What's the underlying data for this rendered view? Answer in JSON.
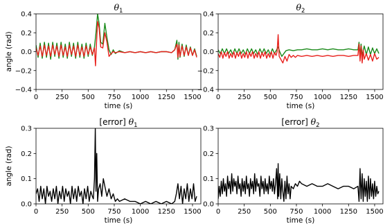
{
  "chart_data": [
    {
      "type": "line",
      "title": "θ₁",
      "title_prefix": "",
      "title_symbol": "θ",
      "title_subscript": "1",
      "xlabel": "time (s)",
      "ylabel": "angle (rad)",
      "xlim": [
        0,
        1580
      ],
      "ylim": [
        -0.4,
        0.4
      ],
      "xticks": [
        0,
        250,
        500,
        750,
        1000,
        1250,
        1500
      ],
      "yticks": [
        -0.4,
        -0.2,
        0.0,
        0.2,
        0.4
      ],
      "ytick_labels": [
        "−0.4",
        "−0.2",
        "0.0",
        "0.2",
        "0.4"
      ],
      "grid": false,
      "series": [
        {
          "color": "#1a8a1a",
          "x": [
            0,
            20,
            40,
            60,
            80,
            100,
            120,
            140,
            160,
            180,
            200,
            220,
            240,
            260,
            280,
            300,
            320,
            340,
            360,
            380,
            400,
            420,
            440,
            460,
            480,
            500,
            520,
            540,
            560,
            575,
            590,
            605,
            620,
            640,
            660,
            680,
            700,
            720,
            740,
            760,
            800,
            850,
            900,
            950,
            1000,
            1050,
            1100,
            1150,
            1200,
            1250,
            1300,
            1330,
            1350,
            1360,
            1370,
            1380,
            1400,
            1420,
            1440,
            1460,
            1480,
            1500,
            1520,
            1540
          ],
          "y": [
            0.07,
            -0.06,
            0.09,
            -0.07,
            0.1,
            -0.06,
            0.09,
            -0.08,
            0.1,
            -0.05,
            0.09,
            -0.07,
            0.1,
            -0.06,
            0.08,
            -0.07,
            0.1,
            -0.05,
            0.09,
            -0.07,
            0.1,
            -0.06,
            0.08,
            -0.07,
            0.09,
            -0.05,
            0.08,
            -0.04,
            0.05,
            0.2,
            0.4,
            0.3,
            0.1,
            0.08,
            0.3,
            0.15,
            0.02,
            -0.03,
            0.02,
            -0.02,
            0.01,
            -0.01,
            0.0,
            -0.01,
            0.0,
            -0.01,
            0.0,
            -0.01,
            0.0,
            0.0,
            -0.01,
            0.02,
            0.12,
            -0.08,
            0.1,
            -0.06,
            0.08,
            -0.05,
            0.07,
            -0.04,
            0.05,
            -0.04,
            0.03,
            -0.05
          ]
        },
        {
          "color": "#e8201c",
          "x": [
            0,
            20,
            40,
            60,
            80,
            100,
            120,
            140,
            160,
            180,
            200,
            220,
            240,
            260,
            280,
            300,
            320,
            340,
            360,
            380,
            400,
            420,
            440,
            460,
            480,
            500,
            520,
            540,
            560,
            570,
            580,
            590,
            605,
            620,
            640,
            660,
            680,
            700,
            720,
            740,
            760,
            800,
            850,
            900,
            950,
            1000,
            1050,
            1100,
            1150,
            1200,
            1250,
            1300,
            1330,
            1350,
            1360,
            1370,
            1380,
            1400,
            1420,
            1440,
            1460,
            1480,
            1500,
            1520,
            1540
          ],
          "y": [
            0.04,
            -0.04,
            0.06,
            -0.05,
            0.07,
            -0.04,
            0.06,
            -0.05,
            0.07,
            -0.03,
            0.06,
            -0.05,
            0.07,
            -0.04,
            0.05,
            -0.05,
            0.07,
            -0.03,
            0.06,
            -0.05,
            0.07,
            -0.04,
            0.05,
            -0.05,
            0.06,
            -0.03,
            0.05,
            -0.03,
            0.04,
            -0.15,
            0.1,
            0.32,
            0.25,
            0.05,
            0.04,
            0.2,
            0.1,
            -0.05,
            -0.02,
            0.0,
            -0.01,
            0.0,
            -0.01,
            0.0,
            -0.01,
            0.0,
            -0.01,
            0.0,
            -0.01,
            0.0,
            0.0,
            -0.01,
            0.02,
            0.08,
            -0.06,
            0.07,
            -0.05,
            0.06,
            -0.04,
            0.05,
            -0.04,
            0.04,
            -0.04,
            0.02,
            -0.06
          ]
        }
      ]
    },
    {
      "type": "line",
      "title": "θ₂",
      "title_prefix": "",
      "title_symbol": "θ",
      "title_subscript": "2",
      "xlabel": "time (s)",
      "ylabel": "",
      "xlim": [
        0,
        1580
      ],
      "ylim": [
        -0.4,
        0.4
      ],
      "xticks": [
        0,
        250,
        500,
        750,
        1000,
        1250,
        1500
      ],
      "yticks": [
        -0.4,
        -0.2,
        0.0,
        0.2,
        0.4
      ],
      "ytick_labels": [
        "−0.4",
        "−0.2",
        "0.0",
        "0.2",
        "0.4"
      ],
      "grid": false,
      "series": [
        {
          "color": "#1a8a1a",
          "x": [
            0,
            20,
            40,
            60,
            80,
            100,
            120,
            140,
            160,
            180,
            200,
            220,
            240,
            260,
            280,
            300,
            320,
            340,
            360,
            380,
            400,
            420,
            440,
            460,
            480,
            500,
            520,
            540,
            560,
            575,
            590,
            610,
            630,
            650,
            680,
            720,
            760,
            800,
            850,
            900,
            950,
            1000,
            1050,
            1100,
            1150,
            1200,
            1250,
            1300,
            1340,
            1350,
            1360,
            1370,
            1380,
            1400,
            1420,
            1440,
            1460,
            1480,
            1500,
            1520,
            1540
          ],
          "y": [
            0.02,
            -0.02,
            0.03,
            -0.02,
            0.03,
            -0.02,
            0.02,
            -0.03,
            0.03,
            -0.02,
            0.03,
            -0.02,
            0.02,
            -0.03,
            0.03,
            -0.02,
            0.03,
            -0.02,
            0.02,
            -0.03,
            0.03,
            -0.02,
            0.03,
            -0.02,
            0.02,
            -0.03,
            0.03,
            -0.02,
            0.02,
            0.05,
            0.0,
            -0.05,
            -0.02,
            0.01,
            0.02,
            0.01,
            0.02,
            0.02,
            0.03,
            0.02,
            0.02,
            0.03,
            0.02,
            0.03,
            0.02,
            0.02,
            0.03,
            0.02,
            0.02,
            0.1,
            -0.05,
            0.08,
            -0.04,
            0.06,
            -0.03,
            0.05,
            -0.03,
            0.04,
            -0.02,
            0.03,
            -0.02
          ]
        },
        {
          "color": "#e8201c",
          "x": [
            0,
            15,
            30,
            45,
            60,
            75,
            90,
            105,
            120,
            135,
            150,
            165,
            180,
            195,
            210,
            225,
            240,
            255,
            270,
            285,
            300,
            315,
            330,
            345,
            360,
            375,
            390,
            405,
            420,
            435,
            450,
            465,
            480,
            495,
            510,
            525,
            540,
            555,
            565,
            575,
            585,
            600,
            620,
            640,
            660,
            680,
            700,
            720,
            740,
            760,
            800,
            850,
            900,
            950,
            1000,
            1050,
            1100,
            1150,
            1200,
            1250,
            1300,
            1340,
            1350,
            1360,
            1370,
            1380,
            1390,
            1400,
            1420,
            1440,
            1460,
            1480,
            1500,
            1520,
            1540
          ],
          "y": [
            -0.02,
            -0.06,
            0.0,
            -0.07,
            -0.01,
            -0.05,
            0.0,
            -0.07,
            -0.02,
            -0.06,
            0.0,
            -0.07,
            -0.01,
            -0.05,
            0.0,
            -0.07,
            -0.02,
            -0.06,
            0.0,
            -0.07,
            -0.01,
            -0.05,
            0.0,
            -0.07,
            -0.02,
            -0.06,
            0.0,
            -0.07,
            -0.01,
            -0.05,
            0.0,
            -0.07,
            -0.02,
            -0.06,
            0.0,
            -0.07,
            -0.01,
            -0.04,
            0.0,
            0.18,
            -0.05,
            -0.08,
            -0.12,
            -0.05,
            -0.1,
            -0.03,
            -0.06,
            -0.04,
            -0.06,
            -0.04,
            -0.05,
            -0.04,
            -0.05,
            -0.04,
            -0.05,
            -0.04,
            -0.05,
            -0.04,
            -0.04,
            -0.05,
            -0.04,
            -0.04,
            0.08,
            -0.1,
            0.06,
            -0.12,
            0.02,
            -0.08,
            -0.02,
            -0.09,
            -0.03,
            -0.1,
            -0.02,
            -0.08,
            -0.06
          ]
        }
      ]
    },
    {
      "type": "line",
      "title": "[error] θ₁",
      "title_prefix": "[error] ",
      "title_symbol": "θ",
      "title_subscript": "1",
      "xlabel": "time (s)",
      "ylabel": "angle (rad)",
      "xlim": [
        0,
        1580
      ],
      "ylim": [
        0.0,
        0.3
      ],
      "xticks": [
        0,
        250,
        500,
        750,
        1000,
        1250,
        1500
      ],
      "yticks": [
        0.0,
        0.1,
        0.2,
        0.3
      ],
      "ytick_labels": [
        "0.0",
        "0.1",
        "0.2",
        "0.3"
      ],
      "grid": false,
      "series": [
        {
          "color": "#000000",
          "x": [
            0,
            15,
            30,
            45,
            60,
            75,
            90,
            105,
            120,
            135,
            150,
            165,
            180,
            195,
            210,
            225,
            240,
            255,
            270,
            285,
            300,
            315,
            330,
            345,
            360,
            375,
            390,
            405,
            420,
            435,
            450,
            465,
            480,
            495,
            510,
            525,
            540,
            550,
            560,
            568,
            575,
            582,
            590,
            600,
            615,
            630,
            645,
            660,
            680,
            700,
            720,
            740,
            760,
            780,
            800,
            850,
            900,
            950,
            1000,
            1050,
            1100,
            1150,
            1200,
            1250,
            1300,
            1330,
            1345,
            1360,
            1375,
            1390,
            1405,
            1420,
            1435,
            1450,
            1465,
            1480,
            1495,
            1510,
            1525,
            1540
          ],
          "y": [
            0.04,
            0.06,
            0.01,
            0.07,
            0.02,
            0.06,
            0.0,
            0.07,
            0.03,
            0.05,
            0.01,
            0.06,
            0.02,
            0.07,
            0.0,
            0.05,
            0.02,
            0.07,
            0.01,
            0.06,
            0.03,
            0.05,
            0.0,
            0.07,
            0.02,
            0.06,
            0.01,
            0.07,
            0.03,
            0.05,
            0.0,
            0.06,
            0.02,
            0.07,
            0.01,
            0.05,
            0.03,
            0.02,
            0.1,
            0.3,
            0.05,
            0.2,
            0.01,
            0.06,
            0.08,
            0.03,
            0.1,
            0.07,
            0.03,
            0.06,
            0.02,
            0.04,
            0.01,
            0.02,
            0.01,
            0.02,
            0.01,
            0.01,
            0.0,
            0.01,
            0.0,
            0.01,
            0.0,
            0.01,
            0.0,
            0.01,
            0.04,
            0.08,
            0.02,
            0.07,
            0.0,
            0.06,
            0.02,
            0.08,
            0.01,
            0.06,
            0.02,
            0.08,
            0.01,
            0.03
          ]
        }
      ]
    },
    {
      "type": "line",
      "title": "[error] θ₂",
      "title_prefix": "[error] ",
      "title_symbol": "θ",
      "title_subscript": "2",
      "xlabel": "time (s)",
      "ylabel": "",
      "xlim": [
        0,
        1580
      ],
      "ylim": [
        0.0,
        0.3
      ],
      "xticks": [
        0,
        250,
        500,
        750,
        1000,
        1250,
        1500
      ],
      "yticks": [
        0.0,
        0.1,
        0.2,
        0.3
      ],
      "ytick_labels": [
        "0.0",
        "0.1",
        "0.2",
        "0.3"
      ],
      "grid": false,
      "series": [
        {
          "color": "#000000",
          "x": [
            0,
            10,
            20,
            30,
            40,
            50,
            60,
            70,
            80,
            90,
            100,
            110,
            120,
            130,
            140,
            150,
            160,
            170,
            180,
            190,
            200,
            210,
            220,
            230,
            240,
            250,
            260,
            270,
            280,
            290,
            300,
            310,
            320,
            330,
            340,
            350,
            360,
            370,
            380,
            390,
            400,
            410,
            420,
            430,
            440,
            450,
            460,
            470,
            480,
            490,
            500,
            510,
            520,
            530,
            540,
            550,
            560,
            570,
            575,
            580,
            590,
            600,
            610,
            620,
            630,
            640,
            650,
            660,
            670,
            680,
            690,
            700,
            720,
            740,
            760,
            780,
            800,
            850,
            900,
            950,
            1000,
            1050,
            1100,
            1150,
            1200,
            1250,
            1300,
            1340,
            1350,
            1360,
            1370,
            1380,
            1390,
            1400,
            1410,
            1420,
            1430,
            1440,
            1450,
            1460,
            1470,
            1480,
            1490,
            1500,
            1510,
            1520,
            1530,
            1540
          ],
          "y": [
            0.02,
            0.07,
            0.03,
            0.09,
            0.04,
            0.1,
            0.05,
            0.08,
            0.03,
            0.11,
            0.06,
            0.09,
            0.04,
            0.12,
            0.05,
            0.1,
            0.07,
            0.09,
            0.04,
            0.11,
            0.06,
            0.08,
            0.03,
            0.1,
            0.05,
            0.09,
            0.04,
            0.11,
            0.06,
            0.08,
            0.03,
            0.1,
            0.06,
            0.09,
            0.04,
            0.12,
            0.05,
            0.1,
            0.07,
            0.08,
            0.03,
            0.11,
            0.06,
            0.09,
            0.04,
            0.1,
            0.05,
            0.08,
            0.04,
            0.11,
            0.06,
            0.09,
            0.05,
            0.1,
            0.04,
            0.08,
            0.14,
            0.02,
            0.16,
            0.03,
            0.12,
            0.02,
            0.1,
            0.05,
            0.01,
            0.09,
            0.02,
            0.11,
            0.04,
            0.08,
            0.02,
            0.07,
            0.06,
            0.08,
            0.07,
            0.09,
            0.08,
            0.07,
            0.08,
            0.07,
            0.07,
            0.08,
            0.07,
            0.06,
            0.07,
            0.07,
            0.06,
            0.07,
            0.01,
            0.14,
            0.02,
            0.12,
            0.01,
            0.1,
            0.03,
            0.09,
            0.01,
            0.11,
            0.02,
            0.1,
            0.03,
            0.08,
            0.02,
            0.09,
            0.03,
            0.07,
            0.04,
            0.05
          ]
        }
      ]
    }
  ]
}
